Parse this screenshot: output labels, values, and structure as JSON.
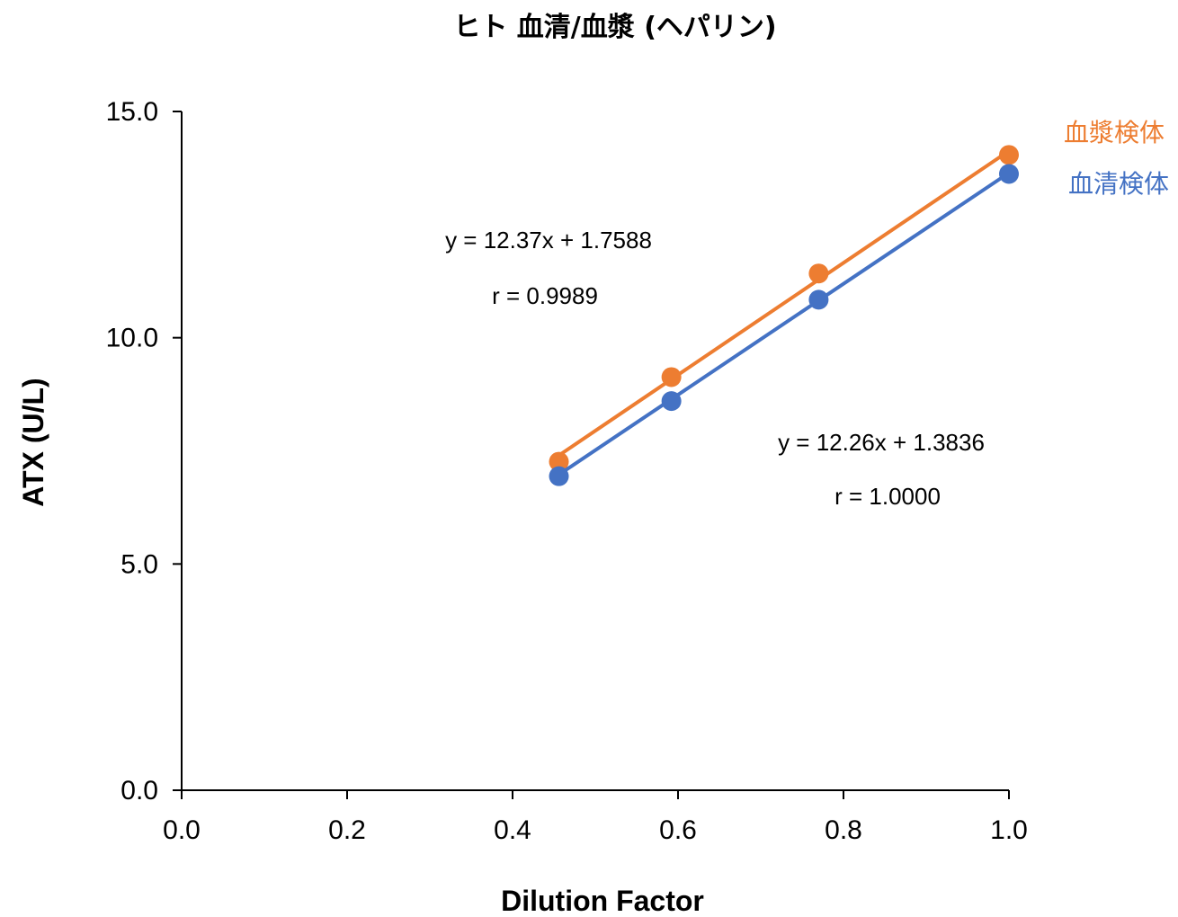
{
  "chart_data": {
    "type": "scatter",
    "title": "ヒト 血清/血漿 (ヘパリン)",
    "xlabel": "Dilution Factor",
    "ylabel": "ATX (U/L)",
    "xlim": [
      0.0,
      1.0
    ],
    "ylim": [
      0.0,
      15.0
    ],
    "x_ticks": [
      "0.0",
      "0.2",
      "0.4",
      "0.6",
      "0.8",
      "1.0"
    ],
    "y_ticks": [
      "0.0",
      "5.0",
      "10.0",
      "15.0"
    ],
    "grid": false,
    "legend_position": "right",
    "series": [
      {
        "name": "血漿検体",
        "color": "#ED7D31",
        "x": [
          0.456,
          0.592,
          0.77,
          1.0
        ],
        "y": [
          7.26,
          9.13,
          11.42,
          14.04
        ],
        "trendline": {
          "slope": 12.37,
          "intercept": 1.7588
        },
        "equation": "y = 12.37x + 1.7588",
        "r_label": "r = 0.9989"
      },
      {
        "name": "血清検体",
        "color": "#4472C4",
        "x": [
          0.456,
          0.592,
          0.77,
          1.0
        ],
        "y": [
          6.94,
          8.6,
          10.84,
          13.62
        ],
        "trendline": {
          "slope": 12.26,
          "intercept": 1.3836
        },
        "equation": "y = 12.26x + 1.3836",
        "r_label": "r = 1.0000"
      }
    ]
  }
}
